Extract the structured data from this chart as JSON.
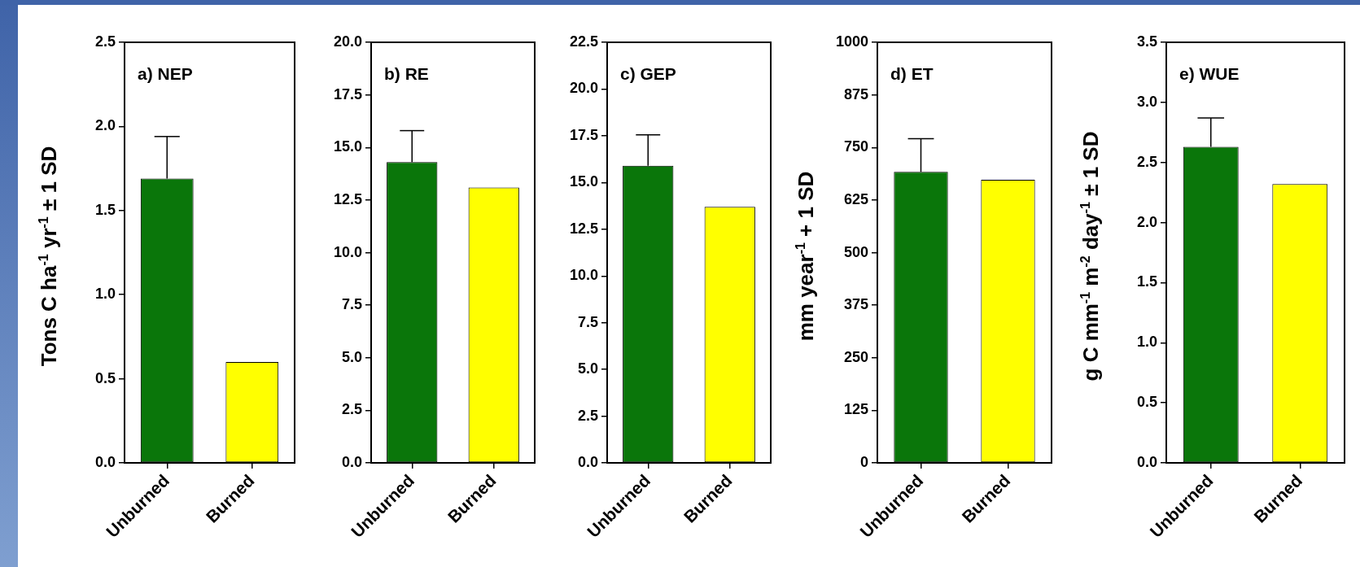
{
  "chart_data": [
    {
      "type": "bar",
      "title": "a) NEP",
      "ylabel": "Tons C ha$^{-1}$ yr$^{-1}$ ± 1 SD",
      "categories": [
        "Unburned",
        "Burned"
      ],
      "values": [
        1.69,
        0.6
      ],
      "colors": [
        "#0a760a",
        "#ffff00"
      ],
      "errors": [
        [
          1.69,
          1.94
        ],
        null
      ],
      "ylim": [
        0,
        2.5
      ],
      "yticks": [
        {
          "value": 0,
          "label": "0.0"
        },
        0.5,
        {
          "value": 1,
          "label": "1.0"
        },
        1.5,
        {
          "value": 2,
          "label": "2.0"
        },
        2.5
      ],
      "grid": false,
      "legend": false
    },
    {
      "type": "bar",
      "title": "b) RE",
      "categories": [
        "Unburned",
        "Burned"
      ],
      "values": [
        14.3,
        13.1
      ],
      "colors": [
        "#0a760a",
        "#ffff00"
      ],
      "errors": [
        [
          14.3,
          15.8
        ],
        null
      ],
      "ylim": [
        0,
        20
      ],
      "yticks": [
        {
          "value": 0,
          "label": "0.0"
        },
        2.5,
        {
          "value": 5,
          "label": "5.0"
        },
        7.5,
        {
          "value": 10,
          "label": "10.0"
        },
        12.5,
        {
          "value": 15,
          "label": "15.0"
        },
        17.5,
        {
          "value": 20,
          "label": "20.0"
        }
      ],
      "grid": false,
      "legend": false
    },
    {
      "type": "bar",
      "title": "c) GEP",
      "categories": [
        "Unburned",
        "Burned"
      ],
      "values": [
        15.9,
        13.7
      ],
      "colors": [
        "#0a760a",
        "#ffff00"
      ],
      "errors": [
        [
          15.9,
          17.55
        ],
        null
      ],
      "ylim": [
        0,
        22.5
      ],
      "yticks": [
        {
          "value": 0,
          "label": "0.0"
        },
        2.5,
        {
          "value": 5,
          "label": "5.0"
        },
        7.5,
        {
          "value": 10,
          "label": "10.0"
        },
        12.5,
        {
          "value": 15,
          "label": "15.0"
        },
        17.5,
        {
          "value": 20,
          "label": "20.0"
        },
        22.5
      ],
      "grid": false,
      "legend": false
    },
    {
      "type": "bar",
      "title": "d) ET",
      "ylabel": "mm year$^{-1}$ + 1 SD",
      "categories": [
        "Unburned",
        "Burned"
      ],
      "values": [
        692,
        673
      ],
      "colors": [
        "#0a760a",
        "#ffff00"
      ],
      "errors": [
        [
          692,
          771
        ],
        null
      ],
      "ylim": [
        0,
        1000
      ],
      "yticks": [
        0,
        125,
        250,
        375,
        500,
        625,
        750,
        875,
        1000
      ],
      "grid": false,
      "legend": false
    },
    {
      "type": "bar",
      "title": "e) WUE",
      "ylabel": "g C mm$^{-1}$ m$^{-2}$ day$^{-1}$ ± 1 SD",
      "categories": [
        "Unburned",
        "Burned"
      ],
      "values": [
        2.63,
        2.32
      ],
      "colors": [
        "#0a760a",
        "#ffff00"
      ],
      "errors": [
        [
          2.63,
          2.87
        ],
        null
      ],
      "ylim": [
        0,
        3.5
      ],
      "yticks": [
        {
          "value": 0,
          "label": "0.0"
        },
        0.5,
        {
          "value": 1,
          "label": "1.0"
        },
        1.5,
        {
          "value": 2,
          "label": "2.0"
        },
        2.5,
        {
          "value": 3,
          "label": "3.0"
        },
        3.5
      ],
      "grid": false,
      "legend": false
    }
  ]
}
